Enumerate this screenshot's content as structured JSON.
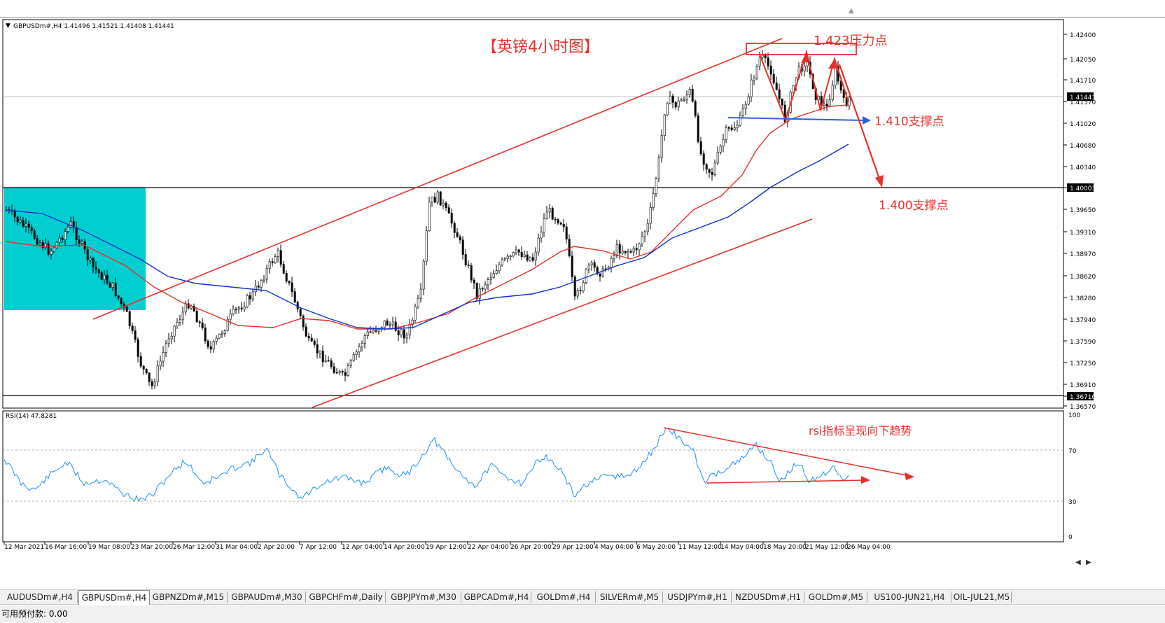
{
  "symbol_header": "GBPUSDm#,H4  1.41496 1.41521 1.41408 1.41441",
  "rsi_header": "RSI(14) 47.8281",
  "current_price": "1.41441",
  "price_axis": [
    "1.42400",
    "1.42050",
    "1.41710",
    "1.41370",
    "1.41020",
    "1.40680",
    "1.40340",
    "1.40003",
    "1.39650",
    "1.39310",
    "1.38970",
    "1.38620",
    "1.38280",
    "1.37940",
    "1.37590",
    "1.37250",
    "1.36910",
    "1.36710",
    "1.36570"
  ],
  "rsi_axis": [
    "100",
    "70",
    "30",
    "0"
  ],
  "time_axis": [
    "12 Mar 2021",
    "16 Mar 16:00",
    "19 Mar 08:00",
    "23 Mar 20:00",
    "26 Mar 12:00",
    "31 Mar 04:00",
    "2 Apr 20:00",
    "7 Apr 12:00",
    "12 Apr 04:00",
    "14 Apr 20:00",
    "19 Apr 12:00",
    "22 Apr 04:00",
    "26 Apr 20:00",
    "29 Apr 12:00",
    "4 May 04:00",
    "6 May 20:00",
    "11 May 12:00",
    "14 May 04:00",
    "18 May 20:00",
    "21 May 12:00",
    "26 May 04:00"
  ],
  "annotations": {
    "title": "【英镑4小时图】",
    "resistance": "1.423压力点",
    "support_1": "1.410支撑点",
    "support_2": "1.400支撑点",
    "rsi_note": "rsi指标呈现向下趋势"
  },
  "tabs": [
    {
      "label": "AUDUSDm#,H4",
      "active": false
    },
    {
      "label": "GBPUSDm#,H4",
      "active": true
    },
    {
      "label": "GBPNZDm#,M15",
      "active": false
    },
    {
      "label": "GBPAUDm#,M30",
      "active": false
    },
    {
      "label": "GBPCHFm#,Daily",
      "active": false
    },
    {
      "label": "GBPJPYm#,M30",
      "active": false
    },
    {
      "label": "GBPCADm#,H4",
      "active": false
    },
    {
      "label": "GOLDm#,H4",
      "active": false
    },
    {
      "label": "SILVERm#,M5",
      "active": false
    },
    {
      "label": "USDJPYm#,H1",
      "active": false
    },
    {
      "label": "NZDUSDm#,H1",
      "active": false
    },
    {
      "label": "GOLDm#,M5",
      "active": false
    },
    {
      "label": "US100-JUN21,H4",
      "active": false
    },
    {
      "label": "OIL-JUL21,M5",
      "active": false
    }
  ],
  "status_text": "可用预付款: 0.00",
  "colors": {
    "red": "#e8302a",
    "blue_ma": "#1030c8",
    "rsi_line": "#1e90ff",
    "cyan_box": "#00ced1",
    "arrow_blue": "#3060d0"
  }
}
